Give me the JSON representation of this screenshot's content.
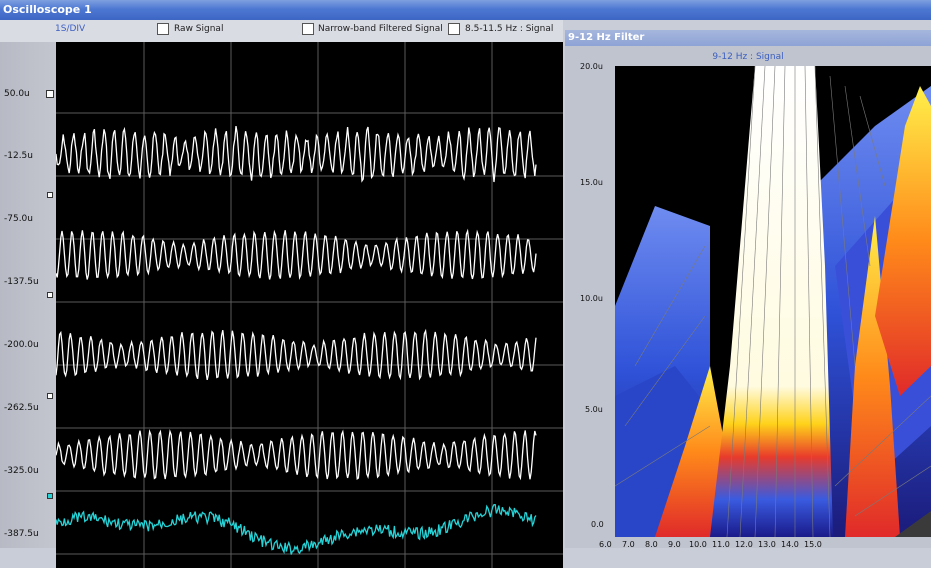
{
  "window": {
    "title": "Oscilloscope 1"
  },
  "oscilloscope": {
    "scale": "1S/DIV",
    "checkboxes": [
      {
        "label": "Raw Signal",
        "checked": false
      },
      {
        "label": "Narrow-band Filtered Signal",
        "checked": false
      },
      {
        "label": "8.5-11.5 Hz : Signal",
        "checked": false
      }
    ],
    "y_labels": [
      "50.0u",
      "-12.5u",
      "-75.0u",
      "-137.5u",
      "-200.0u",
      "-262.5u",
      "-325.0u",
      "-387.5u"
    ],
    "trace_colors": [
      "#ffffff",
      "#ffffff",
      "#ffffff",
      "#ffffff",
      "#26d4d8"
    ]
  },
  "filter": {
    "window_title": "9-12 Hz Filter",
    "plot_title": "9-12 Hz : Signal",
    "y_labels": [
      "20.0u",
      "15.0u",
      "10.0u",
      "5.0u",
      "0.0"
    ],
    "x_labels": [
      "6.0",
      "7.0",
      "8.0",
      "9.0",
      "10.0",
      "11.0",
      "12.0",
      "13.0",
      "14.0",
      "15.0"
    ]
  }
}
